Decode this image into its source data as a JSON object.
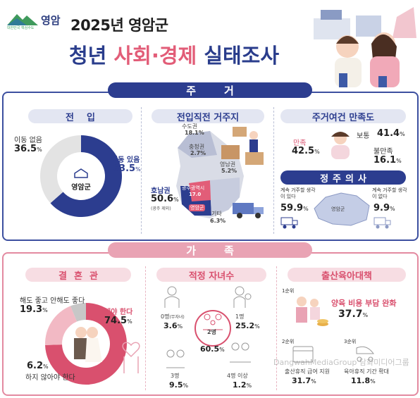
{
  "logo": {
    "tagline": "대한민국 핵심수도",
    "name": "영암"
  },
  "title": {
    "line1": "2025년 영암군",
    "line2_a": "청년 ",
    "line2_b": "사회·경제",
    "line2_c": " 실태조사"
  },
  "housing": {
    "banner": "주거",
    "move_in": {
      "title": "전입",
      "center": "영암군",
      "no_move_label": "이동 없음",
      "no_move_value": "36.5",
      "unit": "%",
      "moved_label": "이동 있음",
      "moved_value": "63.5"
    },
    "prev_residence": {
      "title": "전입직전 거주지",
      "capital": {
        "label": "수도권",
        "value": "18.1%"
      },
      "chungcheong": {
        "label": "충청권",
        "value": "2.7%"
      },
      "yeongnam": {
        "label": "영남권",
        "value": "5.2%"
      },
      "honam": {
        "label": "호남권",
        "value": "50.6",
        "note": "(광주 제외)"
      },
      "gwangju": {
        "label": "광주광역시",
        "value": "17.0"
      },
      "yeongam_pin": "영암군",
      "other": {
        "label": "기타",
        "value": "6.3%"
      }
    },
    "satisfaction": {
      "title": "주거여건 만족도",
      "satisfied_label": "만족",
      "satisfied_value": "42.5",
      "neutral_label": "보통",
      "neutral_value": "41.4",
      "dissatisfied_label": "불만족",
      "dissatisfied_value": "16.1"
    },
    "settle": {
      "title": "정주의사",
      "yes_label": "계속 거주할 생각이 있다",
      "yes_value": "59.9",
      "no_label": "계속 거주할 생각이 없다",
      "no_value": "9.9",
      "map_label": "영암군"
    }
  },
  "family": {
    "banner": "가족",
    "marriage": {
      "title": "결혼관",
      "either_label": "해도 좋고 안해도 좋다",
      "either_value": "19.3",
      "should_label": "해야 한다",
      "should_value": "74.5",
      "shouldnt_label": "하지 않아야 한다",
      "shouldnt_value": "6.2"
    },
    "children": {
      "title": "적정 자녀수",
      "zero_label": "0명",
      "zero_note": "(무자녀)",
      "zero_value": "3.6",
      "one_label": "1명",
      "one_value": "25.2",
      "two_label": "2명",
      "two_value": "60.5",
      "three_label": "3명",
      "three_value": "9.5",
      "four_label": "4명 이상",
      "four_value": "1.2"
    },
    "policy": {
      "title": "출산육아대책",
      "first_rank": "1순위",
      "first_label": "양육 비용 부담 완화",
      "first_value": "37.7",
      "second_rank": "2순위",
      "second_label": "출산휴직 급여 지원",
      "second_value": "31.7",
      "third_rank": "3순위",
      "third_label": "육아휴직 기간 확대",
      "third_value": "11.8"
    }
  },
  "watermark": "DangwahMediaGroup 담화미디어그룹",
  "colors": {
    "navy": "#2c3d8f",
    "pink": "#d9506e",
    "lightpink": "#f2b9c4",
    "gray": "#e3e3e3"
  },
  "chart_data": [
    {
      "type": "pie",
      "title": "전입",
      "labels": [
        "이동 있음",
        "이동 없음"
      ],
      "values": [
        63.5,
        36.5
      ]
    },
    {
      "type": "pie",
      "title": "결혼관",
      "labels": [
        "해야 한다",
        "해도 좋고 안해도 좋다",
        "하지 않아야 한다"
      ],
      "values": [
        74.5,
        19.3,
        6.2
      ]
    }
  ]
}
